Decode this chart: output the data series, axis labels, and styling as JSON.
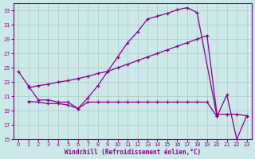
{
  "background_color": "#cce8e8",
  "grid_color": "#b0c8c8",
  "line_color": "#880088",
  "xlabel": "Windchill (Refroidissement éolien,°C)",
  "xlim": [
    -0.5,
    23.5
  ],
  "ylim": [
    15,
    34
  ],
  "yticks": [
    15,
    17,
    19,
    21,
    23,
    25,
    27,
    29,
    31,
    33
  ],
  "xticks": [
    0,
    1,
    2,
    3,
    4,
    5,
    6,
    7,
    8,
    9,
    10,
    11,
    12,
    13,
    14,
    15,
    16,
    17,
    18,
    19,
    20,
    21,
    22,
    23
  ],
  "curve1_x": [
    0,
    1,
    2,
    3,
    4,
    5,
    6,
    7,
    8,
    9,
    10,
    11,
    12,
    13,
    14,
    15,
    16,
    17,
    18,
    20
  ],
  "curve1_y": [
    24.5,
    22.5,
    20.5,
    20.5,
    20.2,
    20.2,
    19.3,
    20.8,
    22.5,
    24.5,
    26.5,
    28.5,
    30.0,
    31.8,
    32.2,
    32.6,
    33.1,
    33.4,
    32.7,
    18.2
  ],
  "curve2_x": [
    1,
    2,
    3,
    4,
    5,
    6,
    7,
    8,
    9,
    10,
    11,
    12,
    13,
    14,
    15,
    16,
    17,
    18,
    19,
    20,
    21,
    22,
    23
  ],
  "curve2_y": [
    22.2,
    22.5,
    22.7,
    23.0,
    23.2,
    23.5,
    23.8,
    24.2,
    24.5,
    25.0,
    25.5,
    26.0,
    26.5,
    27.0,
    27.5,
    28.0,
    28.5,
    29.0,
    29.5,
    18.5,
    18.5,
    18.5,
    18.3
  ],
  "curve3_x": [
    1,
    2,
    3,
    4,
    5,
    6,
    7,
    8,
    9,
    10,
    11,
    12,
    13,
    14,
    15,
    16,
    17,
    18,
    19,
    20,
    21,
    22,
    23
  ],
  "curve3_y": [
    20.3,
    20.2,
    20.0,
    20.0,
    19.8,
    19.3,
    20.2,
    20.2,
    20.2,
    20.2,
    20.2,
    20.2,
    20.2,
    20.2,
    20.2,
    20.2,
    20.2,
    20.2,
    20.2,
    18.2,
    21.2,
    15.0,
    18.3
  ]
}
